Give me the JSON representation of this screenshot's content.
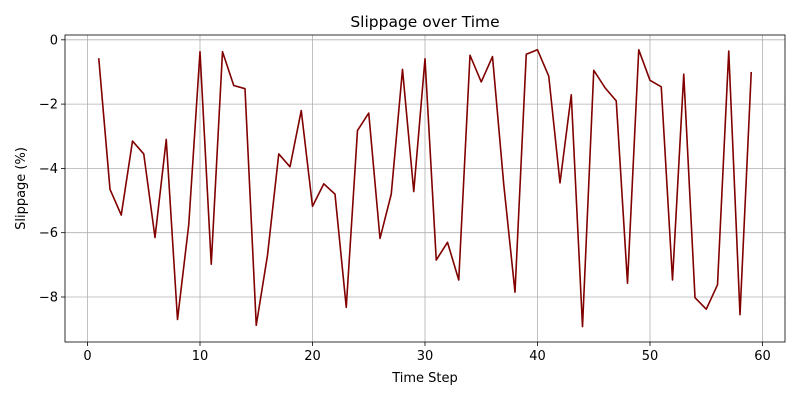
{
  "chart_data": {
    "type": "line",
    "title": "Slippage over Time",
    "xlabel": "Time Step",
    "ylabel": "Slippage (%)",
    "xlim": [
      -2,
      62
    ],
    "ylim": [
      -9.4,
      0.15
    ],
    "x_ticks": [
      0,
      10,
      20,
      30,
      40,
      50,
      60
    ],
    "y_ticks": [
      0,
      -2,
      -4,
      -6,
      -8
    ],
    "x_tick_labels": [
      "0",
      "10",
      "20",
      "30",
      "40",
      "50",
      "60"
    ],
    "y_tick_labels": [
      "0",
      "−2",
      "−4",
      "−6",
      "−8"
    ],
    "grid": true,
    "legend": false,
    "series": [
      {
        "color": "#800000",
        "x": [
          1,
          2,
          3,
          4,
          5,
          6,
          7,
          8,
          9,
          10,
          11,
          12,
          13,
          14,
          15,
          16,
          17,
          18,
          19,
          20,
          21,
          22,
          23,
          24,
          25,
          26,
          27,
          28,
          29,
          30,
          31,
          32,
          33,
          34,
          35,
          36,
          37,
          38,
          39,
          40,
          41,
          42,
          43,
          44,
          45,
          46,
          47,
          48,
          49,
          50,
          51,
          52,
          53,
          54,
          55,
          56,
          57,
          58,
          59
        ],
        "y": [
          -0.57,
          -4.65,
          -5.45,
          -3.15,
          -3.55,
          -6.15,
          -3.1,
          -8.7,
          -5.75,
          -0.37,
          -6.98,
          -0.37,
          -1.42,
          -1.52,
          -8.88,
          -6.7,
          -3.55,
          -3.95,
          -2.2,
          -5.18,
          -4.48,
          -4.8,
          -8.32,
          -2.82,
          -2.28,
          -6.18,
          -4.8,
          -0.92,
          -4.72,
          -0.59,
          -6.85,
          -6.3,
          -7.47,
          -0.48,
          -1.31,
          -0.52,
          -4.5,
          -7.85,
          -0.45,
          -0.31,
          -1.13,
          -4.45,
          -1.71,
          -8.92,
          -0.95,
          -1.49,
          -1.9,
          -7.57,
          -0.31,
          -1.26,
          -1.46,
          -7.47,
          -1.07,
          -8.02,
          -8.38,
          -7.62,
          -0.35,
          -8.55,
          -1.0
        ]
      }
    ]
  }
}
